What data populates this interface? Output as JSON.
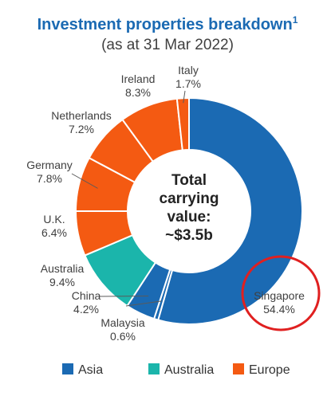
{
  "chart_data": {
    "type": "donut",
    "title": "Investment properties breakdown",
    "title_superscript": "1",
    "subtitle": "(as at 31 Mar 2022)",
    "center_text": [
      "Total",
      "carrying",
      "value:",
      "~$3.5b"
    ],
    "slices": [
      {
        "name": "Singapore",
        "value": 54.4,
        "label": "54.4%",
        "group": "Asia"
      },
      {
        "name": "Malaysia",
        "value": 0.6,
        "label": "0.6%",
        "group": "Asia"
      },
      {
        "name": "China",
        "value": 4.2,
        "label": "4.2%",
        "group": "Asia"
      },
      {
        "name": "Australia",
        "value": 9.4,
        "label": "9.4%",
        "group": "Australia"
      },
      {
        "name": "U.K.",
        "value": 6.4,
        "label": "6.4%",
        "group": "Europe"
      },
      {
        "name": "Germany",
        "value": 7.8,
        "label": "7.8%",
        "group": "Europe"
      },
      {
        "name": "Netherlands",
        "value": 7.2,
        "label": "7.2%",
        "group": "Europe"
      },
      {
        "name": "Ireland",
        "value": 8.3,
        "label": "8.3%",
        "group": "Europe"
      },
      {
        "name": "Italy",
        "value": 1.7,
        "label": "1.7%",
        "group": "Europe"
      }
    ],
    "legend": [
      {
        "name": "Asia",
        "color": "#1b6ab3"
      },
      {
        "name": "Australia",
        "color": "#1bb5ab"
      },
      {
        "name": "Europe",
        "color": "#f45a12"
      }
    ],
    "legend_position": "bottom",
    "highlight": {
      "slice": "Singapore",
      "color": "#e02020",
      "shape": "circle"
    }
  }
}
